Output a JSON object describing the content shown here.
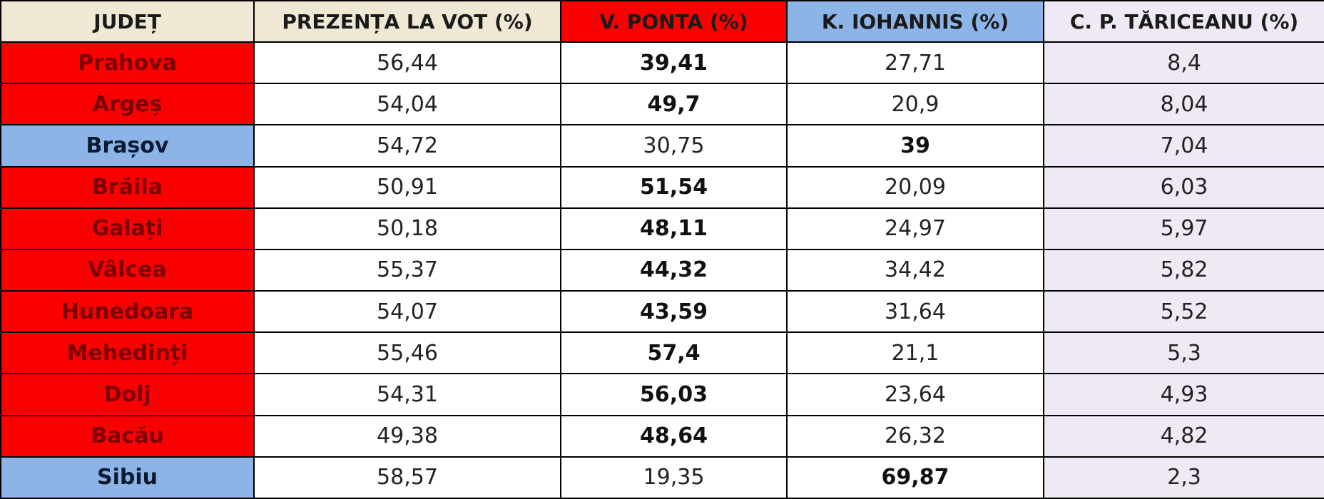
{
  "colors": {
    "header_county": "#eee8d5",
    "header_turnout": "#eee8d5",
    "header_ponta": "#fb0000",
    "header_iohannis": "#8db4e6",
    "header_tariceanu": "#eee9f4",
    "county_red": "#fb0000",
    "county_blue": "#8db4e6",
    "tariceanu_cell": "#eee9f4",
    "default_cell": "#ffffff"
  },
  "headers": [
    "JUDEȚ",
    "PREZENȚA LA VOT (%)",
    "V. PONTA (%)",
    "K. IOHANNIS (%)",
    "C. P. TĂRICEANU (%)"
  ],
  "rows": [
    {
      "county": "Prahova",
      "color": "red",
      "turnout": "56,44",
      "ponta": "39,41",
      "iohannis": "27,71",
      "tariceanu": "8,4",
      "winner": "ponta"
    },
    {
      "county": "Argeș",
      "color": "red",
      "turnout": "54,04",
      "ponta": "49,7",
      "iohannis": "20,9",
      "tariceanu": "8,04",
      "winner": "ponta"
    },
    {
      "county": "Brașov",
      "color": "blue",
      "turnout": "54,72",
      "ponta": "30,75",
      "iohannis": "39",
      "tariceanu": "7,04",
      "winner": "iohannis"
    },
    {
      "county": "Brăila",
      "color": "red",
      "turnout": "50,91",
      "ponta": "51,54",
      "iohannis": "20,09",
      "tariceanu": "6,03",
      "winner": "ponta"
    },
    {
      "county": "Galați",
      "color": "red",
      "turnout": "50,18",
      "ponta": "48,11",
      "iohannis": "24,97",
      "tariceanu": "5,97",
      "winner": "ponta"
    },
    {
      "county": "Vâlcea",
      "color": "red",
      "turnout": "55,37",
      "ponta": "44,32",
      "iohannis": "34,42",
      "tariceanu": "5,82",
      "winner": "ponta"
    },
    {
      "county": "Hunedoara",
      "color": "red",
      "turnout": "54,07",
      "ponta": "43,59",
      "iohannis": "31,64",
      "tariceanu": "5,52",
      "winner": "ponta"
    },
    {
      "county": "Mehedinți",
      "color": "red",
      "turnout": "55,46",
      "ponta": "57,4",
      "iohannis": "21,1",
      "tariceanu": "5,3",
      "winner": "ponta"
    },
    {
      "county": "Dolj",
      "color": "red",
      "turnout": "54,31",
      "ponta": "56,03",
      "iohannis": "23,64",
      "tariceanu": "4,93",
      "winner": "ponta"
    },
    {
      "county": "Bacău",
      "color": "red",
      "turnout": "49,38",
      "ponta": "48,64",
      "iohannis": "26,32",
      "tariceanu": "4,82",
      "winner": "ponta"
    },
    {
      "county": "Sibiu",
      "color": "blue",
      "turnout": "58,57",
      "ponta": "19,35",
      "iohannis": "69,87",
      "tariceanu": "2,3",
      "winner": "iohannis"
    }
  ]
}
